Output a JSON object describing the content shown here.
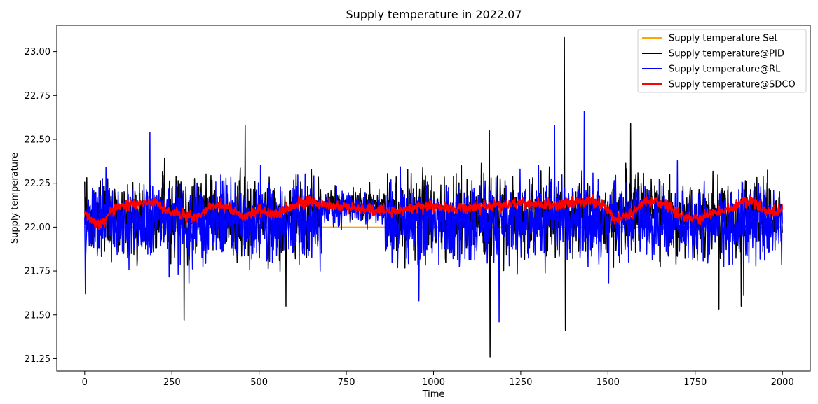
{
  "chart_data": {
    "type": "line",
    "title": "Supply temperature in 2022.07",
    "xlabel": "Time",
    "ylabel": "Supply temperature",
    "xlim": [
      -80,
      2080
    ],
    "ylim": [
      21.18,
      23.15
    ],
    "xticks": [
      0,
      250,
      500,
      750,
      1000,
      1250,
      1500,
      1750,
      2000
    ],
    "xtick_labels": [
      "0",
      "250",
      "500",
      "750",
      "1000",
      "1250",
      "1500",
      "1750",
      "2000"
    ],
    "yticks": [
      21.25,
      21.5,
      21.75,
      22.0,
      22.25,
      22.5,
      22.75,
      23.0
    ],
    "ytick_labels": [
      "21.25",
      "21.50",
      "21.75",
      "22.00",
      "22.25",
      "22.50",
      "22.75",
      "23.00"
    ],
    "grid": false,
    "legend_position": "top-right",
    "n_points": 2000,
    "series": [
      {
        "name": "Supply temperature Set",
        "color": "#ffa500",
        "kind": "constant",
        "value": 22.0
      },
      {
        "name": "Supply temperature@PID",
        "color": "#000000",
        "kind": "noisy",
        "center": 22.05,
        "spread": 0.14,
        "quiet_range": [
          680,
          860
        ],
        "quiet_center": 22.13,
        "quiet_spread": 0.05,
        "spikes": [
          {
            "x": 1162,
            "y": 21.26
          },
          {
            "x": 1375,
            "y": 23.08
          },
          {
            "x": 1378,
            "y": 21.41
          },
          {
            "x": 285,
            "y": 21.47
          },
          {
            "x": 460,
            "y": 22.58
          },
          {
            "x": 1565,
            "y": 22.59
          },
          {
            "x": 1160,
            "y": 22.55
          },
          {
            "x": 1818,
            "y": 21.53
          },
          {
            "x": 1882,
            "y": 21.55
          },
          {
            "x": 577,
            "y": 21.55
          }
        ]
      },
      {
        "name": "Supply temperature@RL",
        "color": "#0000ff",
        "kind": "noisy",
        "center": 22.03,
        "spread": 0.15,
        "quiet_range": [
          680,
          860
        ],
        "quiet_center": 22.1,
        "quiet_spread": 0.06,
        "spikes": [
          {
            "x": 187,
            "y": 22.54
          },
          {
            "x": 1432,
            "y": 22.66
          },
          {
            "x": 1347,
            "y": 22.58
          },
          {
            "x": 1188,
            "y": 21.46
          },
          {
            "x": 2,
            "y": 21.62
          },
          {
            "x": 958,
            "y": 21.58
          },
          {
            "x": 1889,
            "y": 21.61
          }
        ]
      },
      {
        "name": "Supply temperature@SDCO",
        "color": "#ff0000",
        "kind": "smooth",
        "control_points": [
          [
            0,
            22.08
          ],
          [
            20,
            22.03
          ],
          [
            50,
            22.02
          ],
          [
            80,
            22.1
          ],
          [
            120,
            22.13
          ],
          [
            160,
            22.13
          ],
          [
            200,
            22.15
          ],
          [
            230,
            22.1
          ],
          [
            270,
            22.08
          ],
          [
            310,
            22.05
          ],
          [
            350,
            22.1
          ],
          [
            380,
            22.13
          ],
          [
            420,
            22.1
          ],
          [
            460,
            22.05
          ],
          [
            500,
            22.1
          ],
          [
            540,
            22.07
          ],
          [
            580,
            22.1
          ],
          [
            620,
            22.14
          ],
          [
            660,
            22.14
          ],
          [
            700,
            22.12
          ],
          [
            760,
            22.11
          ],
          [
            820,
            22.1
          ],
          [
            880,
            22.09
          ],
          [
            920,
            22.1
          ],
          [
            980,
            22.12
          ],
          [
            1040,
            22.11
          ],
          [
            1100,
            22.11
          ],
          [
            1150,
            22.12
          ],
          [
            1200,
            22.13
          ],
          [
            1250,
            22.14
          ],
          [
            1300,
            22.13
          ],
          [
            1350,
            22.13
          ],
          [
            1400,
            22.14
          ],
          [
            1450,
            22.15
          ],
          [
            1490,
            22.12
          ],
          [
            1520,
            22.04
          ],
          [
            1560,
            22.07
          ],
          [
            1600,
            22.14
          ],
          [
            1640,
            22.15
          ],
          [
            1680,
            22.11
          ],
          [
            1720,
            22.05
          ],
          [
            1760,
            22.05
          ],
          [
            1800,
            22.08
          ],
          [
            1840,
            22.1
          ],
          [
            1880,
            22.14
          ],
          [
            1920,
            22.14
          ],
          [
            1960,
            22.08
          ],
          [
            2000,
            22.1
          ]
        ]
      }
    ]
  }
}
